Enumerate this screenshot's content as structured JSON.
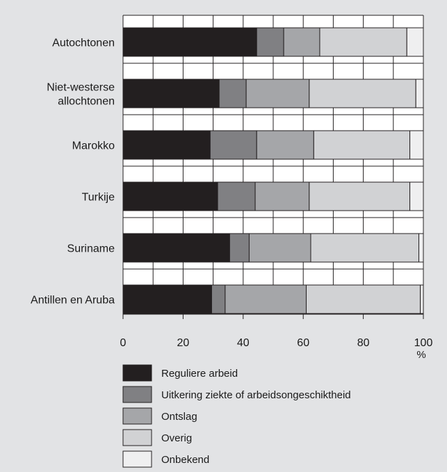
{
  "chart_data": {
    "type": "bar",
    "orientation": "horizontal",
    "stacked": true,
    "categories": [
      [
        "Autochtonen"
      ],
      [
        "Niet-westerse",
        "allochtonen"
      ],
      [
        "Marokko"
      ],
      [
        "Turkije"
      ],
      [
        "Suriname"
      ],
      [
        "Antillen en Aruba"
      ]
    ],
    "series": [
      {
        "name": "Reguliere arbeid",
        "color": "#231f20",
        "values": [
          44.5,
          32,
          29,
          31.5,
          35.5,
          29.5
        ]
      },
      {
        "name": "Uitkering ziekte of arbeidsongeschiktheid",
        "color": "#808083",
        "values": [
          9,
          9,
          15.5,
          12.5,
          6.5,
          4.5
        ]
      },
      {
        "name": "Ontslag",
        "color": "#a5a6a9",
        "values": [
          12,
          21,
          19,
          18,
          20.5,
          27
        ]
      },
      {
        "name": "Overig",
        "color": "#d1d2d4",
        "values": [
          29,
          35.5,
          32,
          33.5,
          36,
          38
        ]
      },
      {
        "name": "Onbekend",
        "color": "#efeff0",
        "values": [
          5.5,
          2.5,
          4.5,
          4.5,
          1.5,
          1
        ]
      }
    ],
    "xlim": [
      0,
      100
    ],
    "xticks": [
      "0",
      "20",
      "40",
      "60",
      "80",
      "100"
    ],
    "xunit": "%",
    "grid": true,
    "legend_position": "bottom"
  }
}
